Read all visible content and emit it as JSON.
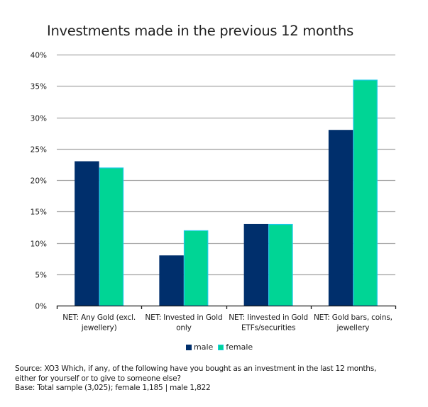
{
  "chart_data": {
    "type": "bar",
    "title": "Investments made in the previous 12 months",
    "xlabel": "",
    "ylabel": "",
    "ylim": [
      0,
      40
    ],
    "y_ticks": [
      "0%",
      "5%",
      "10%",
      "15%",
      "20%",
      "25%",
      "30%",
      "35%",
      "40%"
    ],
    "y_tick_values": [
      0,
      5,
      10,
      15,
      20,
      25,
      30,
      35,
      40
    ],
    "grid": true,
    "legend_position": "bottom",
    "categories": [
      [
        "NET: Any Gold (excl.",
        "jewellery)"
      ],
      [
        "NET: Invested in Gold",
        "only"
      ],
      [
        "NET: Iinvested in Gold",
        "ETFs/securities"
      ],
      [
        "NET: Gold bars, coins,",
        "jewellery"
      ]
    ],
    "series": [
      {
        "name": "male",
        "color": "#002F6C",
        "values": [
          23,
          8,
          13,
          28
        ]
      },
      {
        "name": "female",
        "color": "#00D595",
        "border_color": "#19C9E8",
        "values": [
          22,
          12,
          13,
          36
        ]
      }
    ]
  },
  "footer": {
    "source_line1": "Source: XO3 Which, if any, of the following have you bought as an investment in the last 12 months,",
    "source_line2": "either for yourself or to give to someone else?",
    "base_line": "Base: Total sample (3,025); female 1,185 | male 1,822"
  }
}
